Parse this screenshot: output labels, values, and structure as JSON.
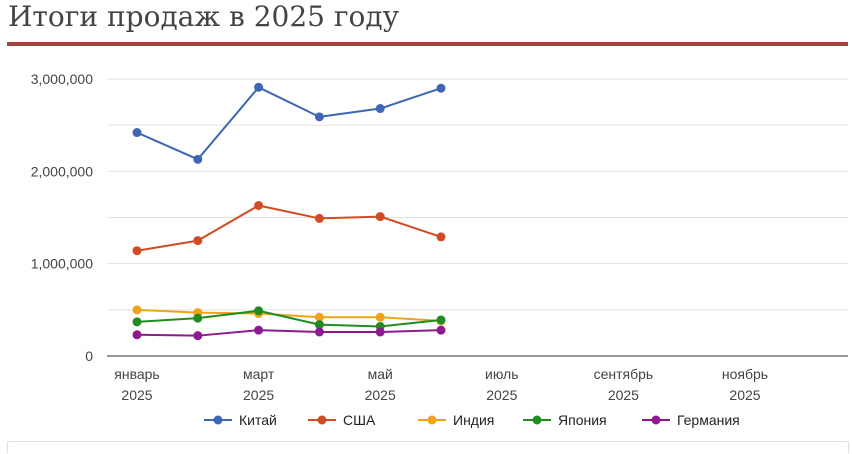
{
  "title": "Итоги продаж в 2025 году",
  "colors": {
    "rule": "#a5433f",
    "title": "#444444",
    "grid": "#e2e2e2",
    "baseline": "#333333",
    "axis_text": "#444444"
  },
  "chart_data": {
    "type": "line",
    "title": "Итоги продаж в 2025 году",
    "xlabel": "",
    "ylabel": "",
    "ylim": [
      0,
      3000000
    ],
    "yticks": [
      0,
      1000000,
      2000000,
      3000000
    ],
    "ytick_labels": [
      "0",
      "1,000,000",
      "2,000,000",
      "3,000,000"
    ],
    "ygrid_step": 500000,
    "xlim": [
      1,
      12
    ],
    "xticks": [
      {
        "x": 1,
        "label": "январь",
        "year": "2025"
      },
      {
        "x": 3,
        "label": "март",
        "year": "2025"
      },
      {
        "x": 5,
        "label": "май",
        "year": "2025"
      },
      {
        "x": 7,
        "label": "июль",
        "year": "2025"
      },
      {
        "x": 9,
        "label": "сентябрь",
        "year": "2025"
      },
      {
        "x": 11,
        "label": "ноябрь",
        "year": "2025"
      }
    ],
    "x": [
      1,
      2,
      3,
      4,
      5,
      6
    ],
    "legend_position": "bottom",
    "series": [
      {
        "name": "Китай",
        "color": "#3d67b5",
        "values": [
          2420000,
          2130000,
          2910000,
          2590000,
          2680000,
          2900000
        ]
      },
      {
        "name": "США",
        "color": "#d14c24",
        "values": [
          1140000,
          1250000,
          1630000,
          1490000,
          1510000,
          1290000
        ]
      },
      {
        "name": "Индия",
        "color": "#efa418",
        "values": [
          500000,
          470000,
          460000,
          420000,
          420000,
          380000
        ]
      },
      {
        "name": "Япония",
        "color": "#1f8d1f",
        "values": [
          370000,
          410000,
          490000,
          340000,
          320000,
          390000
        ]
      },
      {
        "name": "Германия",
        "color": "#8e1a91",
        "values": [
          230000,
          220000,
          280000,
          260000,
          260000,
          280000
        ]
      }
    ]
  }
}
